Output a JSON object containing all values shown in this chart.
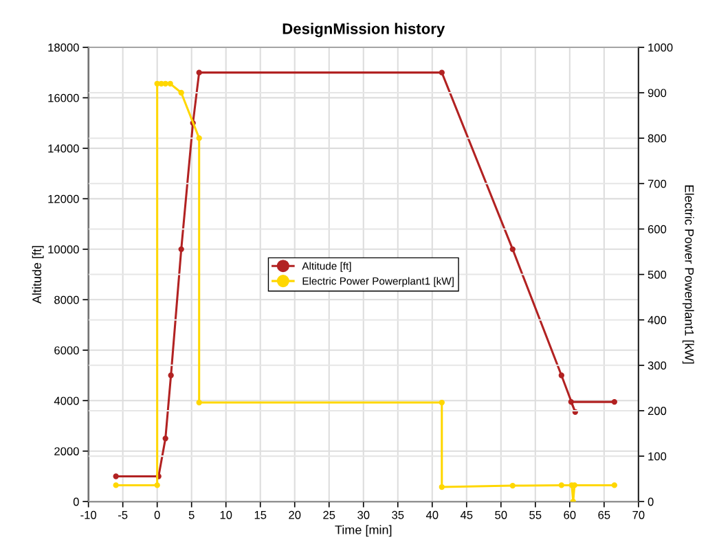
{
  "chart_data": {
    "type": "line",
    "title": "DesignMission history",
    "xlabel": "Time [min]",
    "ylabel": "Altitude [ft]",
    "y2label": "Electric Power Powerplant1 [kW]",
    "series": [
      {
        "name": "Altitude [ft]",
        "color": "#b22222",
        "x": [
          -6,
          0.2,
          1.2,
          2,
          3.5,
          5.2,
          6.1,
          41.4,
          51.7,
          58.8,
          60.8,
          60.2,
          66.5
        ],
        "values": [
          1000,
          1000,
          2500,
          5000,
          10000,
          15000,
          17000,
          17000,
          10000,
          5000,
          3550,
          3950,
          3950
        ]
      },
      {
        "name": "Electric Power Powerplant1 [kW]",
        "color": "#ffd700",
        "axis": "y2",
        "x": [
          -6,
          0,
          0,
          0.6,
          1.2,
          1.9,
          3.5,
          6.1,
          6.1,
          41.4,
          41.4,
          51.7,
          58.8,
          60.3,
          60.5,
          60.7,
          66.5
        ],
        "values": [
          36,
          36,
          920,
          920,
          920,
          920,
          900,
          800,
          218,
          218,
          32,
          35,
          36,
          36,
          0,
          36,
          36
        ]
      }
    ],
    "xlim": [
      -10,
      70
    ],
    "xticks": [
      -10,
      -5,
      0,
      5,
      10,
      15,
      20,
      25,
      30,
      35,
      40,
      45,
      50,
      55,
      60,
      65,
      70
    ],
    "ylim": [
      0,
      18000
    ],
    "yticks": [
      0,
      2000,
      4000,
      6000,
      8000,
      10000,
      12000,
      14000,
      16000,
      18000
    ],
    "y2lim": [
      0,
      1000
    ],
    "y2ticks": [
      0,
      100,
      200,
      300,
      400,
      500,
      600,
      700,
      800,
      900,
      1000
    ],
    "grid": true,
    "legend": "center",
    "marker": "circle",
    "line_style": "solid"
  }
}
